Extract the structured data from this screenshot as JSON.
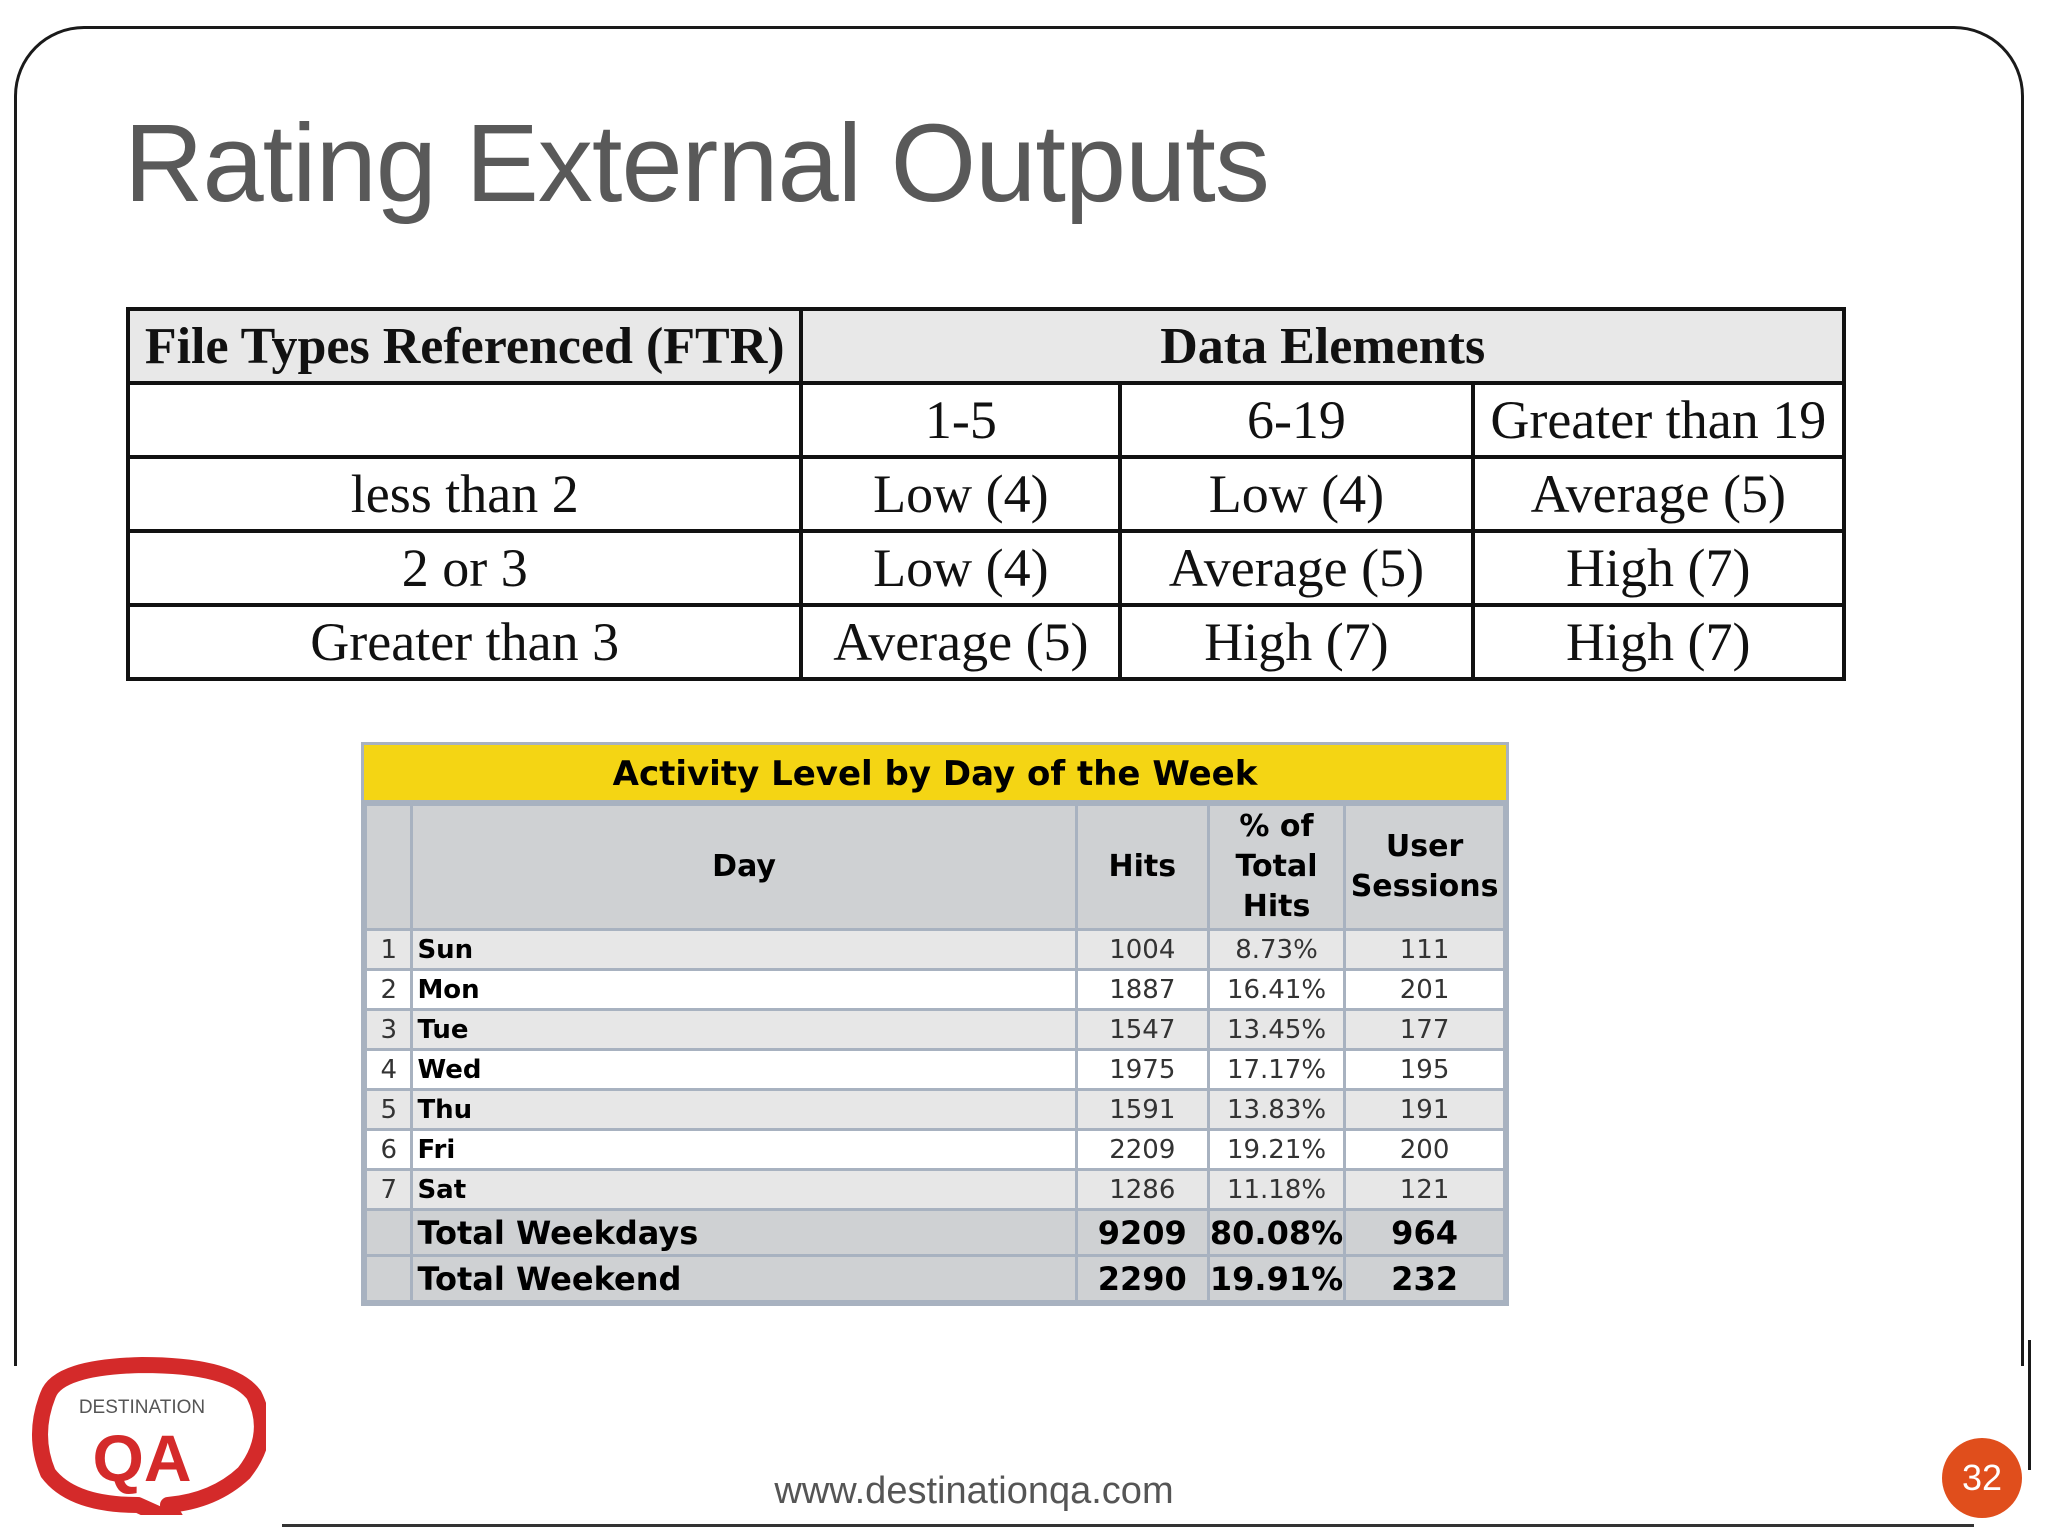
{
  "slide": {
    "title": "Rating External Outputs",
    "footer_url": "www.destinationqa.com",
    "page_number": "32",
    "logo": {
      "line1": "DESTINATION",
      "line2": "QA",
      "colors": {
        "ring": "#d42a2a",
        "text": "#d42a2a",
        "small_text": "#555555"
      }
    }
  },
  "ftr_table": {
    "header": [
      "File Types Referenced (FTR)",
      "Data Elements"
    ],
    "subheader": [
      "",
      "1-5",
      "6-19",
      "Greater than 19"
    ],
    "rows": [
      [
        "less than 2",
        "Low (4)",
        "Low (4)",
        "Average (5)"
      ],
      [
        "2 or 3",
        "Low (4)",
        "Average (5)",
        "High (7)"
      ],
      [
        "Greater than 3",
        "Average (5)",
        "High (7)",
        "High (7)"
      ]
    ]
  },
  "activity_table": {
    "title": "Activity Level by Day of the Week",
    "title_bg": "#f4d514",
    "columns": [
      "",
      "Day",
      "Hits",
      "% of Total Hits",
      "User Sessions"
    ],
    "rows": [
      [
        "1",
        "Sun",
        "1004",
        "8.73%",
        "111"
      ],
      [
        "2",
        "Mon",
        "1887",
        "16.41%",
        "201"
      ],
      [
        "3",
        "Tue",
        "1547",
        "13.45%",
        "177"
      ],
      [
        "4",
        "Wed",
        "1975",
        "17.17%",
        "195"
      ],
      [
        "5",
        "Thu",
        "1591",
        "13.83%",
        "191"
      ],
      [
        "6",
        "Fri",
        "2209",
        "19.21%",
        "200"
      ],
      [
        "7",
        "Sat",
        "1286",
        "11.18%",
        "121"
      ]
    ],
    "totals": [
      [
        "",
        "Total Weekdays",
        "9209",
        "80.08%",
        "964"
      ],
      [
        "",
        "Total Weekend",
        "2290",
        "19.91%",
        "232"
      ]
    ]
  },
  "accent_color": "#e04e1c"
}
